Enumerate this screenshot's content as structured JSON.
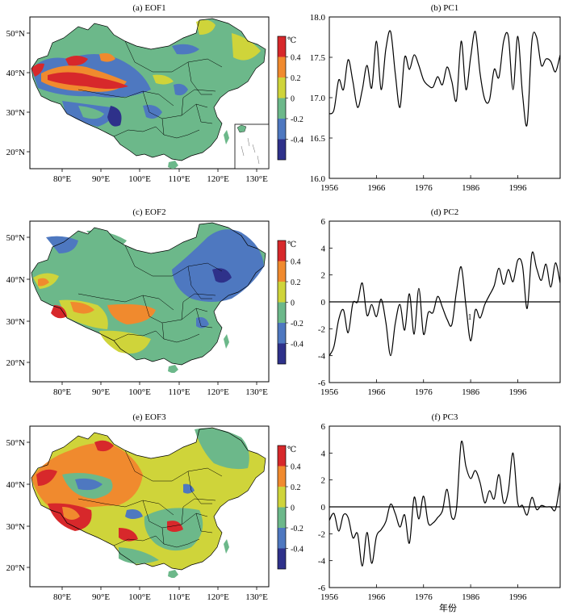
{
  "maps": [
    {
      "title": "(a)  EOF1",
      "colorbar_unit": "℃",
      "colorbar_ticks": [
        "0.4",
        "0.2",
        "0",
        "-0.2",
        "-0.4"
      ]
    },
    {
      "title": "(c)  EOF2",
      "colorbar_unit": "℃",
      "colorbar_ticks": [
        "0.4",
        "0.2",
        "0",
        "-0.2",
        "-0.4"
      ]
    },
    {
      "title": "(e)  EOF3",
      "colorbar_unit": "℃",
      "colorbar_ticks": [
        "0.4",
        "0.2",
        "0",
        "-0.2",
        "-0.4"
      ]
    }
  ],
  "map_axes": {
    "lon_labels": [
      "80°E",
      "90°E",
      "100°E",
      "110°E",
      "120°E",
      "130°E"
    ],
    "lat_labels": [
      "50°N",
      "40°N",
      "30°N",
      "20°N"
    ]
  },
  "colors": {
    "levels": [
      "#d7282b",
      "#f08a2e",
      "#cfd43a",
      "#6cb88a",
      "#4e78c0",
      "#2e318a"
    ],
    "line": "#000000"
  },
  "pc_xlabel": "年份",
  "pc_annotation": "1",
  "chart_data": [
    {
      "type": "line",
      "title": "(b)  PC1",
      "xlim": [
        1956,
        2005
      ],
      "ylim": [
        16.0,
        18.0
      ],
      "xticks": [
        1956,
        1966,
        1976,
        1986,
        1996
      ],
      "yticks": [
        "16.0",
        "16.5",
        "17.0",
        "17.5",
        "18.0"
      ],
      "x": [
        1956,
        1957,
        1958,
        1959,
        1960,
        1961,
        1962,
        1963,
        1964,
        1965,
        1966,
        1967,
        1968,
        1969,
        1970,
        1971,
        1972,
        1973,
        1974,
        1975,
        1976,
        1977,
        1978,
        1979,
        1980,
        1981,
        1982,
        1983,
        1984,
        1985,
        1986,
        1987,
        1988,
        1989,
        1990,
        1991,
        1992,
        1993,
        1994,
        1995,
        1996,
        1997,
        1998,
        1999,
        2000,
        2001,
        2002,
        2003,
        2004,
        2005
      ],
      "values": [
        16.8,
        16.85,
        17.22,
        17.1,
        17.47,
        17.2,
        16.88,
        17.1,
        17.4,
        17.12,
        17.7,
        17.1,
        17.6,
        17.82,
        17.3,
        16.88,
        17.5,
        17.35,
        17.53,
        17.4,
        17.22,
        17.15,
        17.13,
        17.26,
        17.16,
        17.38,
        17.2,
        16.97,
        17.7,
        17.1,
        17.5,
        17.82,
        17.3,
        16.98,
        16.97,
        17.35,
        17.25,
        17.7,
        17.76,
        17.1,
        17.76,
        17.05,
        16.67,
        17.7,
        17.75,
        17.4,
        17.48,
        17.45,
        17.32,
        17.53
      ],
      "baseline": null
    },
    {
      "type": "line",
      "title": "(d)  PC2",
      "xlim": [
        1956,
        2005
      ],
      "ylim": [
        -6,
        6
      ],
      "xticks": [
        1956,
        1966,
        1976,
        1986,
        1996
      ],
      "yticks": [
        "-6",
        "-4",
        "-2",
        "0",
        "2",
        "4",
        "6"
      ],
      "x": [
        1956,
        1957,
        1958,
        1959,
        1960,
        1961,
        1962,
        1963,
        1964,
        1965,
        1966,
        1967,
        1968,
        1969,
        1970,
        1971,
        1972,
        1973,
        1974,
        1975,
        1976,
        1977,
        1978,
        1979,
        1980,
        1981,
        1982,
        1983,
        1984,
        1985,
        1986,
        1987,
        1988,
        1989,
        1990,
        1991,
        1992,
        1993,
        1994,
        1995,
        1996,
        1997,
        1998,
        1999,
        2000,
        2001,
        2002,
        2003,
        2004,
        2005
      ],
      "values": [
        -4.0,
        -3.3,
        -1.3,
        -0.6,
        -2.3,
        -0.1,
        0.0,
        1.4,
        -1.0,
        -0.2,
        -1.1,
        0.2,
        -1.5,
        -4.0,
        -1.6,
        -0.2,
        -2.1,
        0.6,
        -2.4,
        1.0,
        -2.4,
        -0.8,
        -0.8,
        0.4,
        -0.4,
        -1.3,
        -1.7,
        0.8,
        2.6,
        -0.3,
        -2.9,
        -0.6,
        -1.2,
        -0.2,
        0.5,
        1.2,
        2.5,
        1.3,
        2.4,
        1.5,
        3.1,
        2.7,
        -0.5,
        3.6,
        2.5,
        1.6,
        2.8,
        1.1,
        2.9,
        1.4
      ],
      "baseline": 0
    },
    {
      "type": "line",
      "title": "(f)  PC3",
      "xlim": [
        1956,
        2005
      ],
      "ylim": [
        -6,
        6
      ],
      "xticks": [
        1956,
        1966,
        1976,
        1986,
        1996
      ],
      "yticks": [
        "-6",
        "-4",
        "-2",
        "0",
        "2",
        "4",
        "6"
      ],
      "x": [
        1956,
        1957,
        1958,
        1959,
        1960,
        1961,
        1962,
        1963,
        1964,
        1965,
        1966,
        1967,
        1968,
        1969,
        1970,
        1971,
        1972,
        1973,
        1974,
        1975,
        1976,
        1977,
        1978,
        1979,
        1980,
        1981,
        1982,
        1983,
        1984,
        1985,
        1986,
        1987,
        1988,
        1989,
        1990,
        1991,
        1992,
        1993,
        1994,
        1995,
        1996,
        1997,
        1998,
        1999,
        2000,
        2001,
        2002,
        2003,
        2004,
        2005
      ],
      "values": [
        -1.0,
        -0.5,
        -1.8,
        -0.6,
        -0.8,
        -2.3,
        -2.0,
        -4.4,
        -1.9,
        -4.2,
        -2.2,
        -1.7,
        -1.1,
        0.2,
        -0.5,
        -1.5,
        -0.6,
        -2.7,
        0.7,
        -0.9,
        0.8,
        -1.2,
        -1.2,
        -0.8,
        -0.3,
        1.3,
        -0.8,
        -0.1,
        4.8,
        3.0,
        2.1,
        2.7,
        1.8,
        0.3,
        1.2,
        0.6,
        2.4,
        0.3,
        1.2,
        4.0,
        0.3,
        0.1,
        -0.6,
        0.7,
        -0.2,
        0.1,
        0.0,
        0.0,
        -0.2,
        1.8
      ],
      "baseline": 0
    }
  ]
}
